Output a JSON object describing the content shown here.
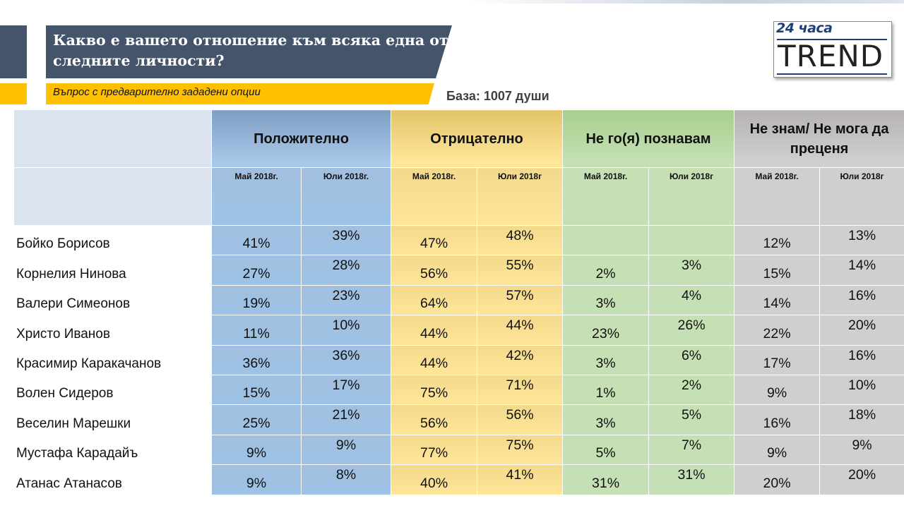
{
  "title": "Какво е вашето отношение към всяка една от следните личности?",
  "subtitle": "Въпрос с предварително зададени опции",
  "base": "База: 1007 души",
  "logo": {
    "top": "24 часа",
    "main": "TREND"
  },
  "colors": {
    "title_bg": "#44546a",
    "accent": "#ffc000",
    "positive": "#9dc3e6",
    "negative": "#ffe699",
    "unknown": "#c5e0b4",
    "dont_know": "#d0cece"
  },
  "table": {
    "groups": [
      {
        "label": "Положително",
        "key": "pos"
      },
      {
        "label": "Отрицателно",
        "key": "neg"
      },
      {
        "label": "Не го(я) познавам",
        "key": "unk"
      },
      {
        "label": "Не знам/ Не мога да преценя",
        "key": "dk"
      }
    ],
    "subheaders": [
      "Май 2018г.",
      "Юли 2018г.",
      "Май 2018г.",
      "Юли 2018г",
      "Май 2018г.",
      "Юли 2018г",
      "Май 2018г.",
      "Юли 2018г"
    ],
    "rows": [
      {
        "name": "Бойко Борисов",
        "values": [
          "41%",
          "39%",
          "47%",
          "48%",
          "",
          "",
          "12%",
          "13%"
        ]
      },
      {
        "name": "Корнелия Нинова",
        "values": [
          "27%",
          "28%",
          "56%",
          "55%",
          "2%",
          "3%",
          "15%",
          "14%"
        ]
      },
      {
        "name": "Валери Симеонов",
        "values": [
          "19%",
          "23%",
          "64%",
          "57%",
          "3%",
          "4%",
          "14%",
          "16%"
        ]
      },
      {
        "name": "Христо Иванов",
        "values": [
          "11%",
          "10%",
          "44%",
          "44%",
          "23%",
          "26%",
          "22%",
          "20%"
        ]
      },
      {
        "name": "Красимир Каракачанов",
        "values": [
          "36%",
          "36%",
          "44%",
          "42%",
          "3%",
          "6%",
          "17%",
          "16%"
        ]
      },
      {
        "name": "Волен Сидеров",
        "values": [
          "15%",
          "17%",
          "75%",
          "71%",
          "1%",
          "2%",
          "9%",
          "10%"
        ]
      },
      {
        "name": "Веселин Марешки",
        "values": [
          "25%",
          "21%",
          "56%",
          "56%",
          "3%",
          "5%",
          "16%",
          "18%"
        ]
      },
      {
        "name": "Мустафа Карадайъ",
        "values": [
          "9%",
          "9%",
          "77%",
          "75%",
          "5%",
          "7%",
          "9%",
          "9%"
        ]
      },
      {
        "name": "Атанас Атанасов",
        "values": [
          "9%",
          "8%",
          "40%",
          "41%",
          "31%",
          "31%",
          "20%",
          "20%"
        ]
      }
    ]
  }
}
